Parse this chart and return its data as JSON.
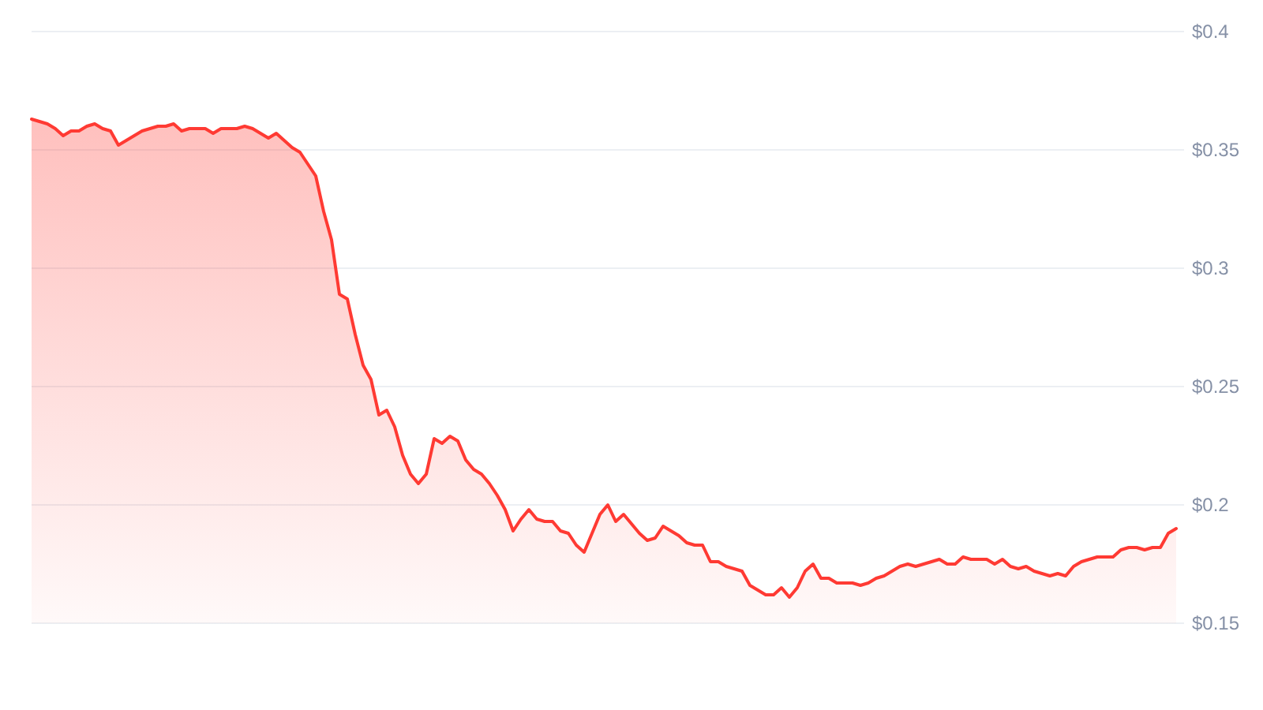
{
  "chart_data": {
    "type": "area",
    "categories": [
      null,
      null,
      null,
      null,
      null,
      null,
      null,
      null,
      null,
      null,
      null,
      null,
      null,
      null,
      null,
      null,
      null,
      null,
      null,
      null,
      null,
      null,
      null,
      null,
      null,
      null,
      null,
      null,
      null,
      null,
      null,
      null,
      null,
      null,
      null,
      null,
      null,
      null,
      null,
      null,
      null,
      null,
      null,
      null,
      null,
      null,
      null,
      null,
      null,
      null,
      null,
      null,
      null,
      null,
      null,
      null,
      null,
      null,
      null,
      null,
      null,
      null,
      null,
      null,
      null,
      null,
      null,
      null,
      null,
      null,
      null,
      null,
      null,
      null,
      null,
      null,
      null,
      null,
      null,
      null,
      null,
      null,
      null,
      null,
      null,
      null,
      null,
      null,
      null,
      null,
      null,
      null,
      null,
      null,
      null,
      null,
      null,
      null,
      null,
      null,
      null,
      null,
      null,
      null,
      null,
      null,
      null,
      null,
      null,
      null,
      null,
      null,
      null,
      null,
      null,
      null,
      null,
      null,
      null,
      null,
      null,
      null,
      null,
      null,
      null,
      null,
      null,
      null,
      null,
      null,
      null,
      null,
      null,
      null,
      null,
      null,
      null,
      null,
      null,
      null,
      null,
      null,
      null,
      null,
      null,
      null
    ],
    "series": [
      {
        "color": "#ff3a33",
        "values": [
          0.363,
          0.362,
          0.361,
          0.359,
          0.356,
          0.358,
          0.358,
          0.36,
          0.361,
          0.359,
          0.358,
          0.352,
          0.354,
          0.356,
          0.358,
          0.359,
          0.36,
          0.36,
          0.361,
          0.358,
          0.359,
          0.359,
          0.359,
          0.357,
          0.359,
          0.359,
          0.359,
          0.36,
          0.359,
          0.357,
          0.355,
          0.357,
          0.354,
          0.351,
          0.349,
          0.344,
          0.339,
          0.324,
          0.312,
          0.289,
          0.287,
          0.272,
          0.259,
          0.253,
          0.238,
          0.24,
          0.233,
          0.221,
          0.213,
          0.209,
          0.213,
          0.228,
          0.226,
          0.229,
          0.227,
          0.219,
          0.215,
          0.213,
          0.209,
          0.204,
          0.198,
          0.189,
          0.194,
          0.198,
          0.194,
          0.193,
          0.193,
          0.189,
          0.188,
          0.183,
          0.18,
          0.188,
          0.196,
          0.2,
          0.193,
          0.196,
          0.192,
          0.188,
          0.185,
          0.186,
          0.191,
          0.189,
          0.187,
          0.184,
          0.183,
          0.183,
          0.176,
          0.176,
          0.174,
          0.173,
          0.172,
          0.166,
          0.164,
          0.162,
          0.162,
          0.165,
          0.161,
          0.165,
          0.172,
          0.175,
          0.169,
          0.169,
          0.167,
          0.167,
          0.167,
          0.166,
          0.167,
          0.169,
          0.17,
          0.172,
          0.174,
          0.175,
          0.174,
          0.175,
          0.176,
          0.177,
          0.175,
          0.175,
          0.178,
          0.177,
          0.177,
          0.177,
          0.175,
          0.177,
          0.174,
          0.173,
          0.174,
          0.172,
          0.171,
          0.17,
          0.171,
          0.17,
          0.174,
          0.176,
          0.177,
          0.178,
          0.178,
          0.178,
          0.181,
          0.182,
          0.182,
          0.181,
          0.182,
          0.182,
          0.188,
          0.19
        ]
      }
    ],
    "ylim": [
      0.15,
      0.4
    ],
    "yticks": [
      {
        "value": 0.15,
        "label": "$0.15"
      },
      {
        "value": 0.2,
        "label": "$0.2"
      },
      {
        "value": 0.25,
        "label": "$0.25"
      },
      {
        "value": 0.3,
        "label": "$0.3"
      },
      {
        "value": 0.35,
        "label": "$0.35"
      },
      {
        "value": 0.4,
        "label": "$0.4"
      }
    ],
    "grid": "y",
    "tick_labels": "y"
  }
}
